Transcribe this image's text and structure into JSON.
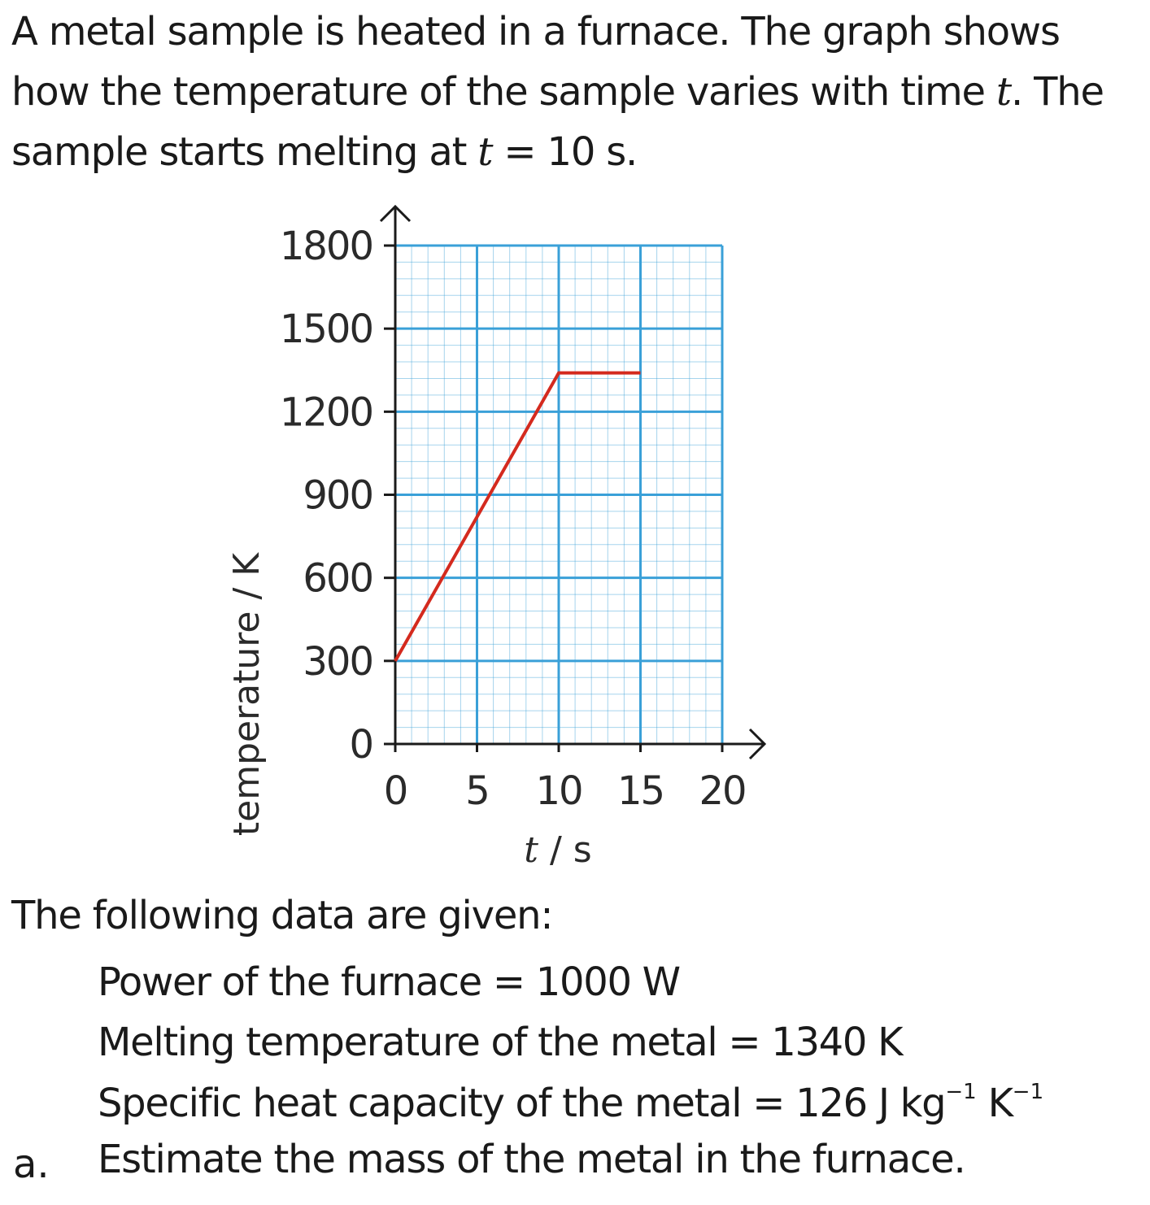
{
  "intro": {
    "line1": "A metal sample is heated in a furnace. The graph shows",
    "line2_pre": "how the temperature of the sample varies with time ",
    "line2_var": "t",
    "line2_post": ". The",
    "line3_pre": "sample starts melting at ",
    "line3_var": "t",
    "line3_post": " = 10 s."
  },
  "chart_data": {
    "type": "line",
    "title": "",
    "xlabel": "t / s",
    "ylabel": "temperature / K",
    "xlim": [
      0,
      20
    ],
    "ylim": [
      0,
      1800
    ],
    "x_ticks": [
      0,
      5,
      10,
      15,
      20
    ],
    "y_ticks": [
      0,
      300,
      600,
      900,
      1200,
      1500,
      1800
    ],
    "grid": true,
    "series": [
      {
        "x": [
          0,
          10,
          15
        ],
        "y": [
          300,
          1340,
          1340
        ]
      }
    ],
    "colors": {
      "line": "#d42a1e",
      "grid": "#3aa0d8",
      "axis": "#1a1a1a"
    }
  },
  "given": {
    "heading": "The following data are given:",
    "power": "Power of the furnace = 1000 W",
    "melting": "Melting temperature of the metal = 1340 K",
    "shc_main": "Specific heat capacity of the metal = 126 J kg",
    "shc_exp1": "−1",
    "shc_mid": " K",
    "shc_exp2": "−1"
  },
  "question": {
    "letter": "a.",
    "text": "Estimate the mass of the metal in the furnace."
  }
}
